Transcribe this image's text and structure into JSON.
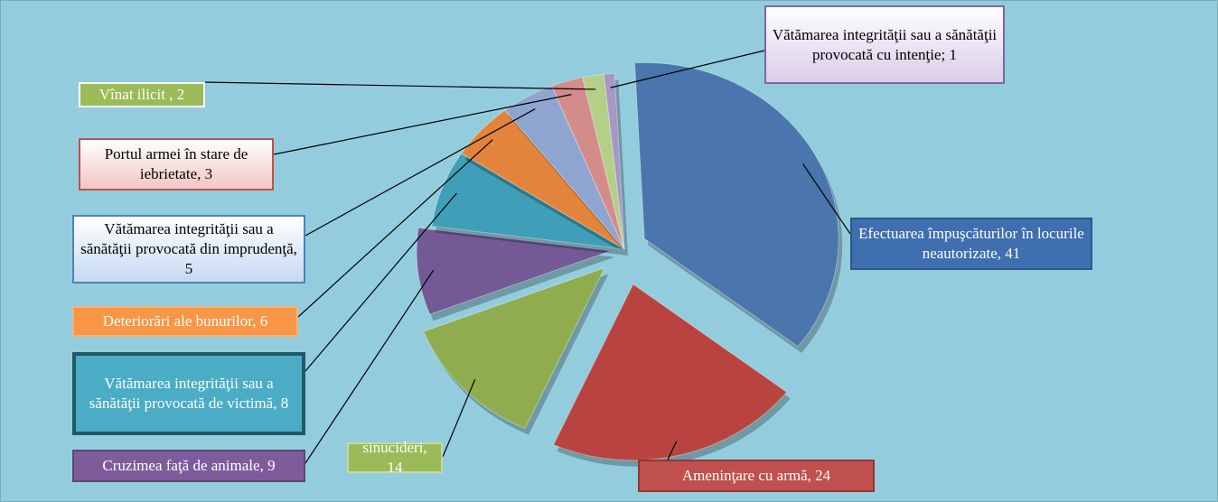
{
  "chart_data": {
    "type": "pie",
    "values": [
      41,
      24,
      14,
      9,
      8,
      6,
      5,
      3,
      2,
      1
    ],
    "value_labels": [
      "Efectuarea împuşcăturilor în locurile neautorizate, 41",
      "Ameninţare cu armă, 24",
      "sinucideri, 14",
      "Cruzimea faţă de animale, 9",
      "Vătămarea integrităţii sau a sănătăţii provocată de victimă, 8",
      "Deteriorări ale bunurilor, 6",
      "Vătămarea integrităţii sau a sănătăţii provocată din imprudenţă, 5",
      "Portul armei în stare de iebrietate, 3",
      "Vînat ilicit , 2",
      "Vătămarea integrităţii sau a sănătăţii provocată cu intenţie; 1"
    ],
    "colors": [
      "#4a76ad",
      "#b9443f",
      "#8fad4e",
      "#735a97",
      "#3f9fb9",
      "#e3843c",
      "#8ea6cf",
      "#d48c8a",
      "#b3cf88",
      "#a896c4"
    ]
  }
}
